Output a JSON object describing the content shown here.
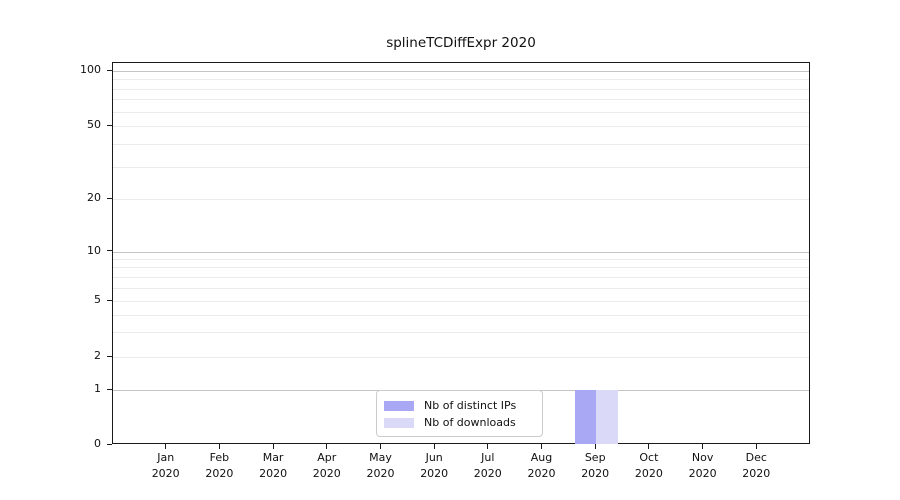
{
  "title": "splineTCDiffExpr 2020",
  "chart_data": {
    "type": "bar",
    "title": "splineTCDiffExpr 2020",
    "categories": [
      "Jan 2020",
      "Feb 2020",
      "Mar 2020",
      "Apr 2020",
      "May 2020",
      "Jun 2020",
      "Jul 2020",
      "Aug 2020",
      "Sep 2020",
      "Oct 2020",
      "Nov 2020",
      "Dec 2020"
    ],
    "series": [
      {
        "name": "Nb of distinct IPs",
        "color": "#a8a8f5",
        "values": [
          0,
          0,
          0,
          0,
          0,
          0,
          0,
          0,
          1,
          0,
          0,
          0
        ]
      },
      {
        "name": "Nb of downloads",
        "color": "#dadaf8",
        "values": [
          0,
          0,
          0,
          0,
          0,
          0,
          0,
          0,
          1,
          0,
          0,
          0
        ]
      }
    ],
    "xlabel": "",
    "ylabel": "",
    "ylim": [
      0,
      100
    ],
    "yticks": [
      0,
      1,
      2,
      5,
      10,
      20,
      50,
      100
    ],
    "y_major_gridlines": [
      1,
      10,
      100
    ],
    "y_minor_gridlines": [
      2,
      3,
      4,
      5,
      6,
      7,
      8,
      9,
      20,
      30,
      40,
      50,
      60,
      70,
      80,
      90
    ],
    "scale": "log-like with zero baseline",
    "grid": true,
    "legend_position": "inside-bottom-center",
    "colors": {
      "major_grid": "#c4c4c4",
      "minor_grid": "#ebebeb",
      "spine": "#1a1a1a",
      "text": "#111111",
      "legend_border": "#cccccc",
      "legend_background": "rgba(255,255,255,0.85)"
    }
  }
}
